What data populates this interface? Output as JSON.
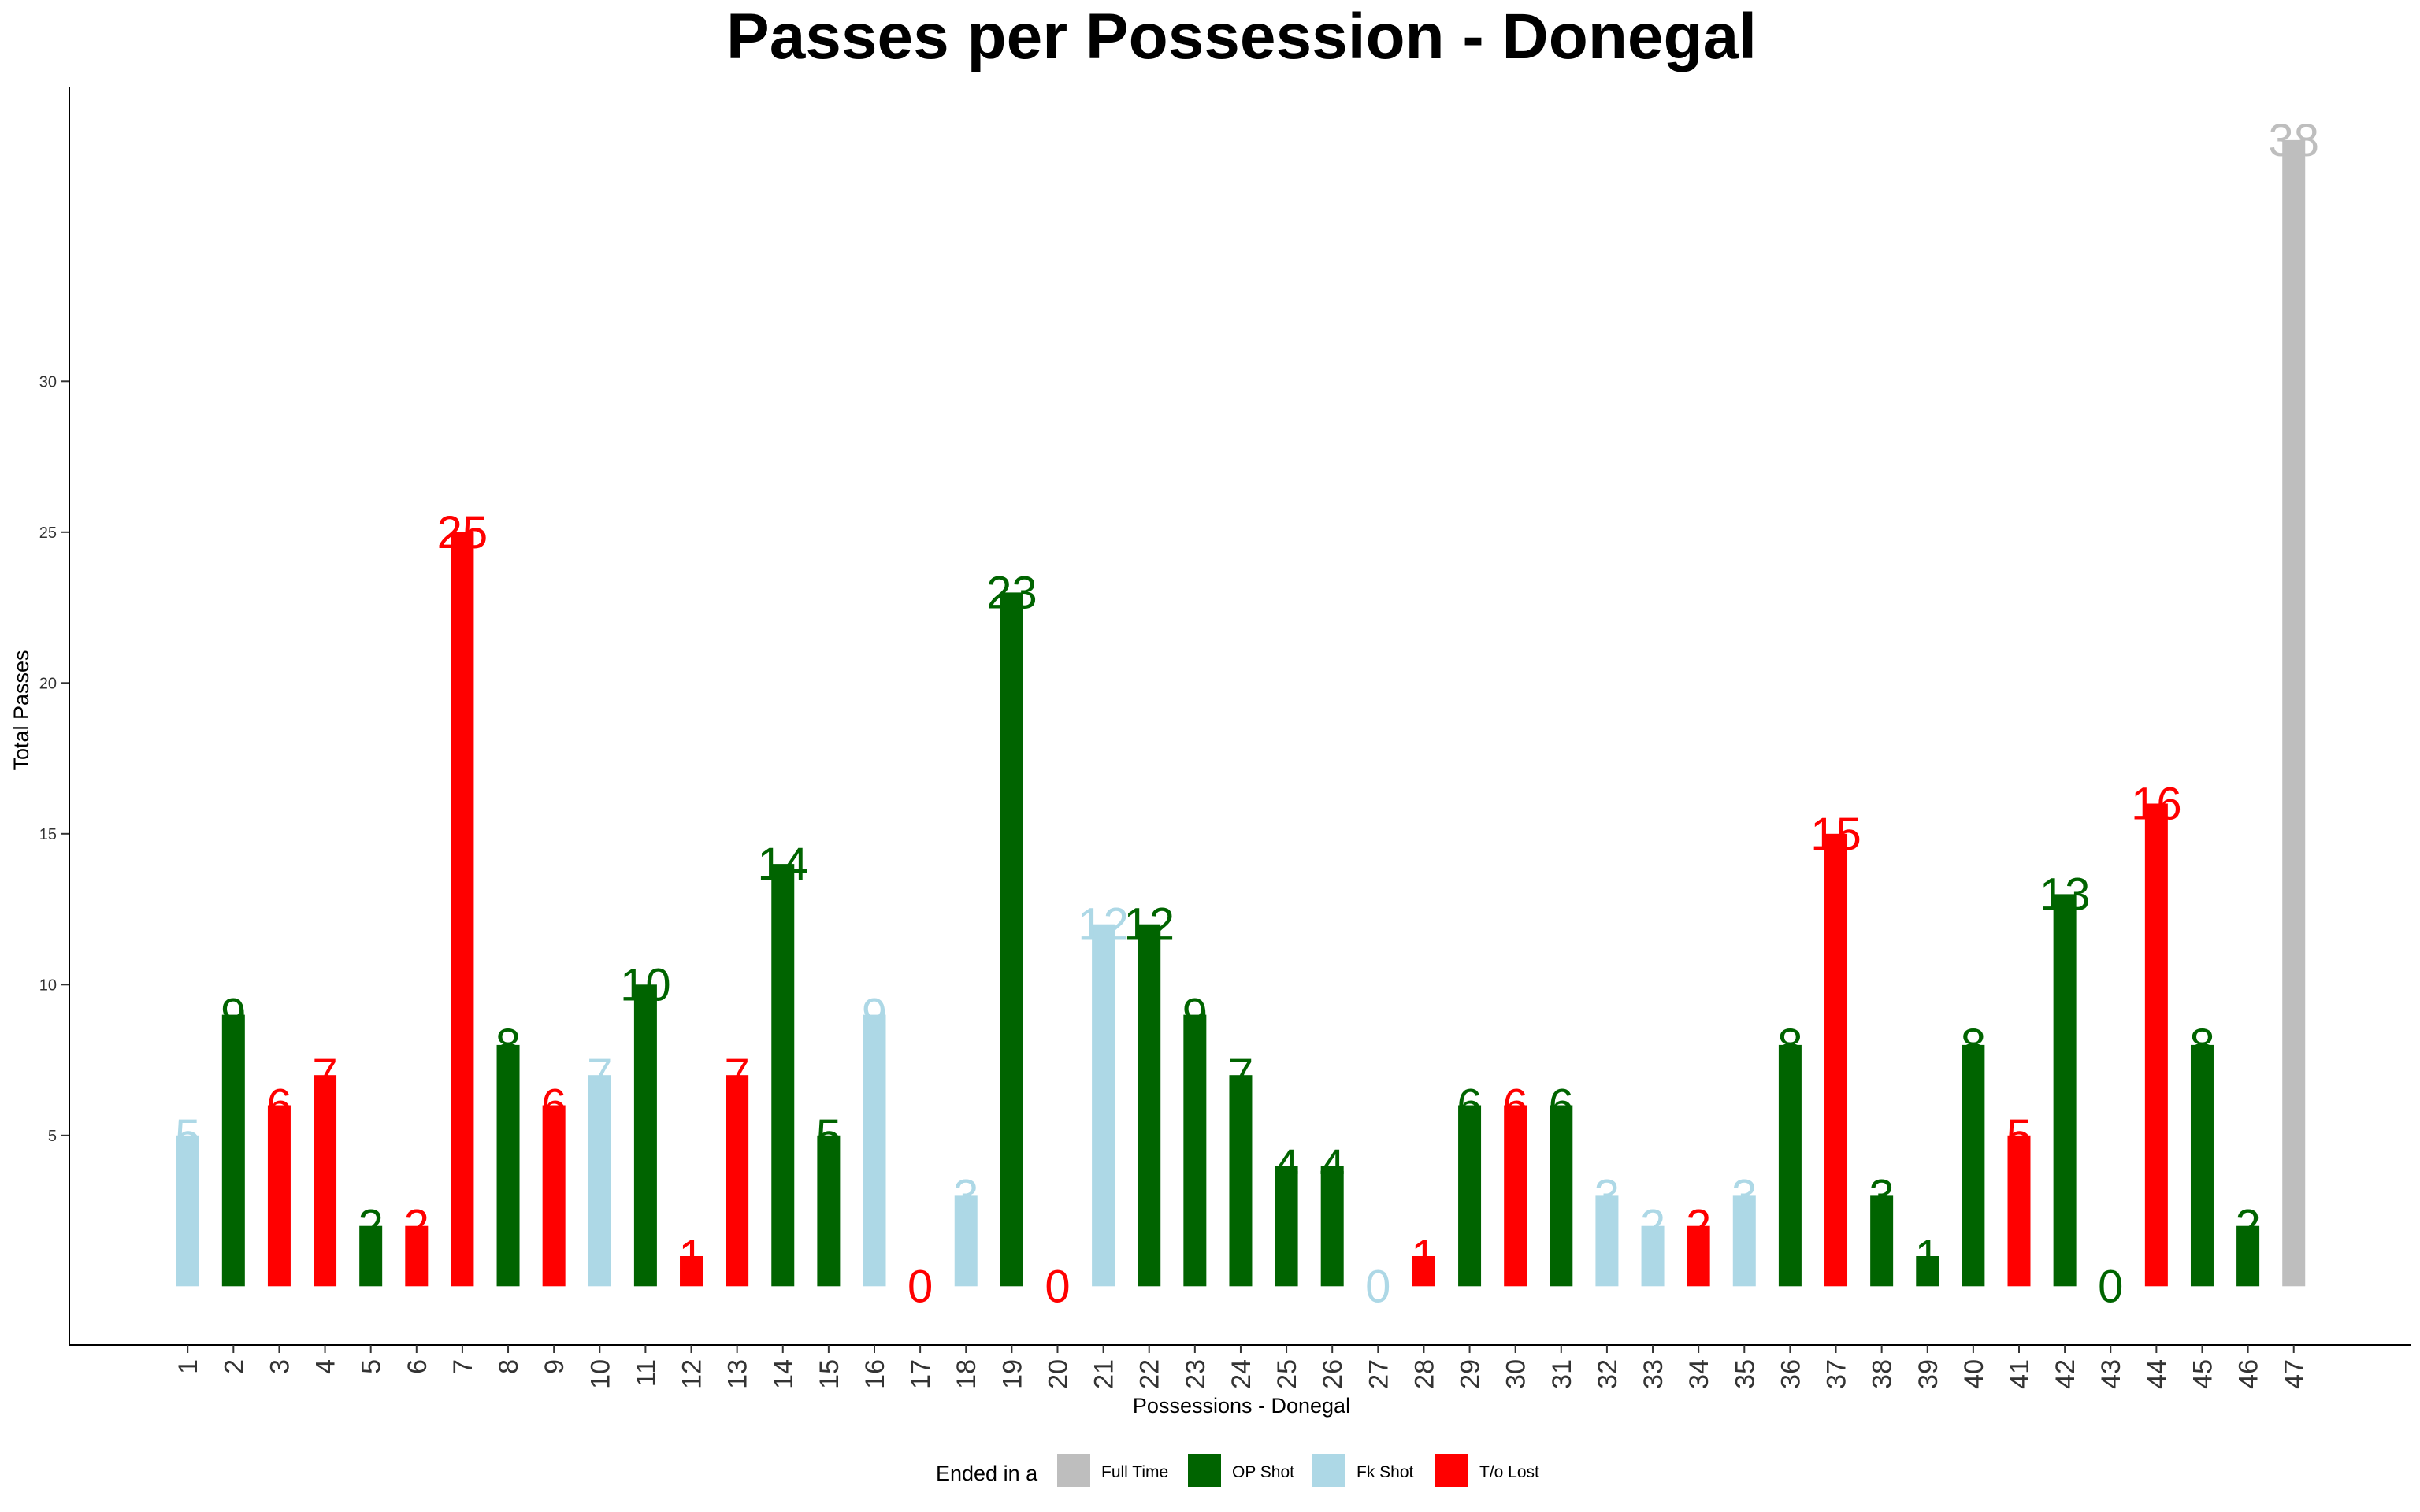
{
  "chart_data": {
    "type": "bar",
    "title": "Passes per Possession - Donegal",
    "xlabel": "Possessions - Donegal",
    "ylabel": "Total Passes",
    "yticks": [
      5,
      10,
      15,
      20,
      25,
      30
    ],
    "ylim": [
      0,
      38
    ],
    "grid": false,
    "legend_title": "Ended in a",
    "legend_position": "bottom",
    "categories": [
      "1",
      "2",
      "3",
      "4",
      "5",
      "6",
      "7",
      "8",
      "9",
      "10",
      "11",
      "12",
      "13",
      "14",
      "15",
      "16",
      "17",
      "18",
      "19",
      "20",
      "21",
      "22",
      "23",
      "24",
      "25",
      "26",
      "27",
      "28",
      "29",
      "30",
      "31",
      "32",
      "33",
      "34",
      "35",
      "36",
      "37",
      "38",
      "39",
      "40",
      "41",
      "42",
      "43",
      "44",
      "45",
      "46",
      "47"
    ],
    "values": [
      5,
      9,
      6,
      7,
      2,
      2,
      25,
      8,
      6,
      7,
      10,
      1,
      7,
      14,
      5,
      9,
      0,
      3,
      23,
      0,
      12,
      12,
      9,
      7,
      4,
      4,
      0,
      1,
      6,
      6,
      6,
      3,
      2,
      2,
      3,
      8,
      15,
      3,
      1,
      8,
      5,
      13,
      0,
      16,
      8,
      2,
      38
    ],
    "outcomes": [
      "Fk Shot",
      "OP Shot",
      "T/o Lost",
      "T/o Lost",
      "OP Shot",
      "T/o Lost",
      "T/o Lost",
      "OP Shot",
      "T/o Lost",
      "Fk Shot",
      "OP Shot",
      "T/o Lost",
      "T/o Lost",
      "OP Shot",
      "OP Shot",
      "Fk Shot",
      "T/o Lost",
      "Fk Shot",
      "OP Shot",
      "T/o Lost",
      "Fk Shot",
      "OP Shot",
      "OP Shot",
      "OP Shot",
      "OP Shot",
      "OP Shot",
      "Fk Shot",
      "T/o Lost",
      "OP Shot",
      "T/o Lost",
      "OP Shot",
      "Fk Shot",
      "Fk Shot",
      "T/o Lost",
      "Fk Shot",
      "OP Shot",
      "T/o Lost",
      "OP Shot",
      "OP Shot",
      "OP Shot",
      "T/o Lost",
      "OP Shot",
      "OP Shot",
      "T/o Lost",
      "OP Shot",
      "OP Shot",
      "Full Time"
    ],
    "legend": [
      {
        "name": "Full Time",
        "color": "#bebebe"
      },
      {
        "name": "OP Shot",
        "color": "#006400"
      },
      {
        "name": "Fk Shot",
        "color": "#add8e6"
      },
      {
        "name": "T/o Lost",
        "color": "#ff0000"
      }
    ]
  }
}
